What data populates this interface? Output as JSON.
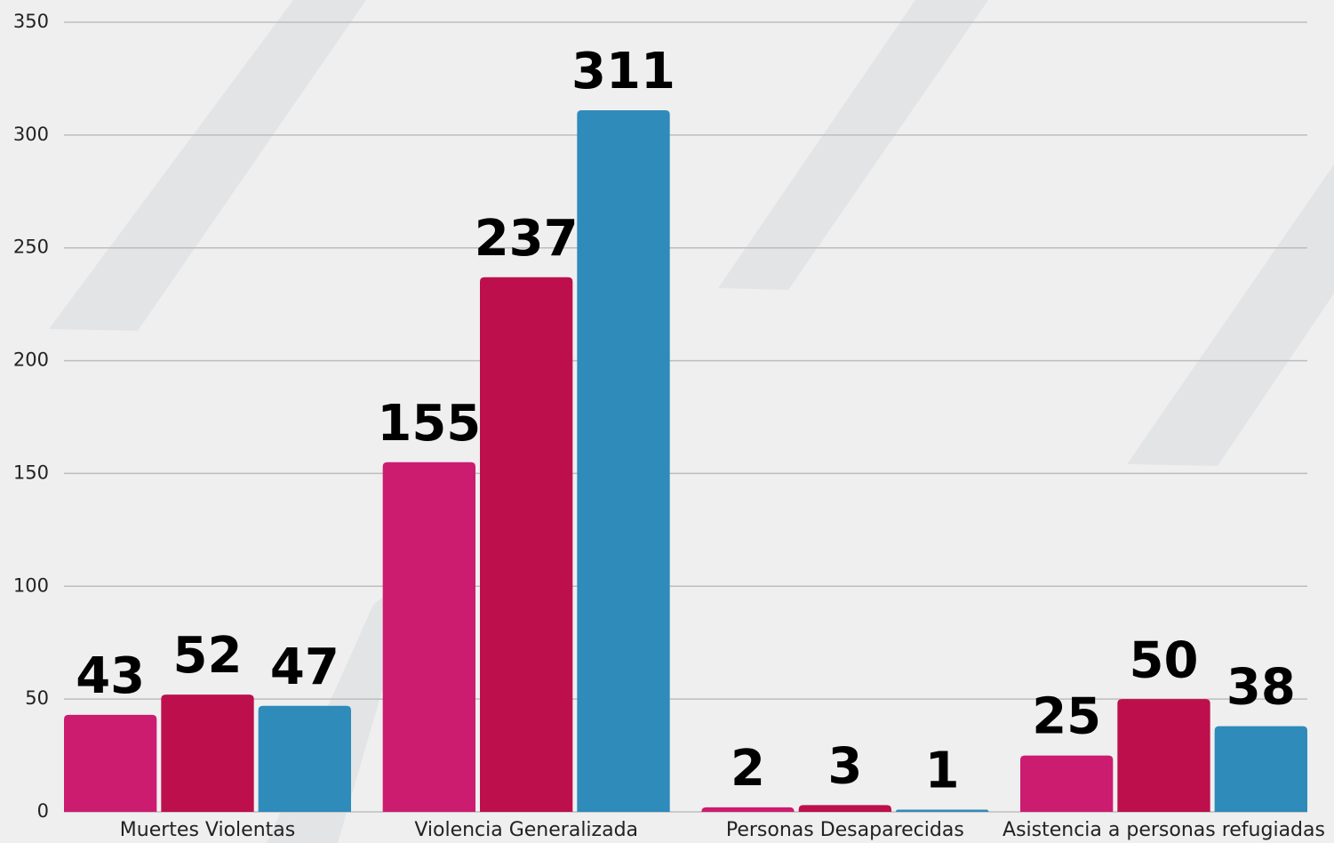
{
  "chart_data": {
    "type": "bar",
    "categories": [
      "Muertes Violentas",
      "Violencia Generalizada",
      "Personas Desaparecidas",
      "Asistencia a personas refugiadas"
    ],
    "series": [
      {
        "color": "#cc1c70",
        "values": [
          43,
          155,
          2,
          25
        ]
      },
      {
        "color": "#bd0f4b",
        "values": [
          52,
          237,
          3,
          50
        ]
      },
      {
        "color": "#2e8bba",
        "values": [
          47,
          311,
          1,
          38
        ]
      }
    ],
    "ylim": [
      0,
      350
    ],
    "yticks": [
      0,
      50,
      100,
      150,
      200,
      250,
      300,
      350
    ],
    "grid": true
  }
}
